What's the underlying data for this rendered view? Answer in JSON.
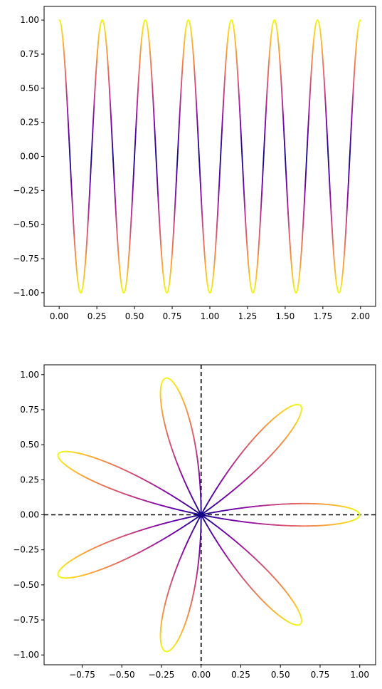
{
  "chart_data": [
    {
      "type": "line",
      "title": "",
      "xlabel": "",
      "ylabel": "",
      "xlim": [
        -0.1,
        2.1
      ],
      "ylim": [
        -1.1,
        1.1
      ],
      "xticks": [
        0.0,
        0.25,
        0.5,
        0.75,
        1.0,
        1.25,
        1.5,
        1.75,
        2.0
      ],
      "xtick_labels": [
        "0.00",
        "0.25",
        "0.50",
        "0.75",
        "1.00",
        "1.25",
        "1.50",
        "1.75",
        "2.00"
      ],
      "yticks": [
        1.0,
        0.75,
        0.5,
        0.25,
        0.0,
        -0.25,
        -0.5,
        -0.75,
        -1.0
      ],
      "ytick_labels": [
        "1.00",
        "0.75",
        "0.50",
        "0.25",
        "0.00",
        "−0.25",
        "−0.50",
        "−0.75",
        "−1.00"
      ],
      "series": [
        {
          "function": "y = cos(7πx)",
          "x_range": [
            0,
            2
          ],
          "color_by": "|y|",
          "colormap": "plasma"
        }
      ],
      "grid": false
    },
    {
      "type": "line",
      "title": "",
      "xlabel": "",
      "ylabel": "",
      "xlim": [
        -0.99,
        1.1
      ],
      "ylim": [
        -1.07,
        1.07
      ],
      "xticks": [
        -0.75,
        -0.5,
        -0.25,
        0.0,
        0.25,
        0.5,
        0.75,
        1.0
      ],
      "xtick_labels": [
        "−0.75",
        "−0.50",
        "−0.25",
        "0.00",
        "0.25",
        "0.50",
        "0.75",
        "1.00"
      ],
      "yticks": [
        1.0,
        0.75,
        0.5,
        0.25,
        0.0,
        -0.25,
        -0.5,
        -0.75,
        -1.0
      ],
      "ytick_labels": [
        "1.00",
        "0.75",
        "0.50",
        "0.25",
        "0.00",
        "−0.25",
        "−0.50",
        "−0.75",
        "−1.00"
      ],
      "series": [
        {
          "function": "polar rose r = cos(7θ)",
          "theta_range": [
            0,
            3.14159
          ],
          "color_by": "r",
          "colormap": "plasma"
        }
      ],
      "reference_lines": [
        {
          "orientation": "horizontal",
          "value": 0,
          "style": "dashed",
          "color": "#000000"
        },
        {
          "orientation": "vertical",
          "value": 0,
          "style": "dashed",
          "color": "#000000"
        }
      ],
      "grid": false
    }
  ]
}
